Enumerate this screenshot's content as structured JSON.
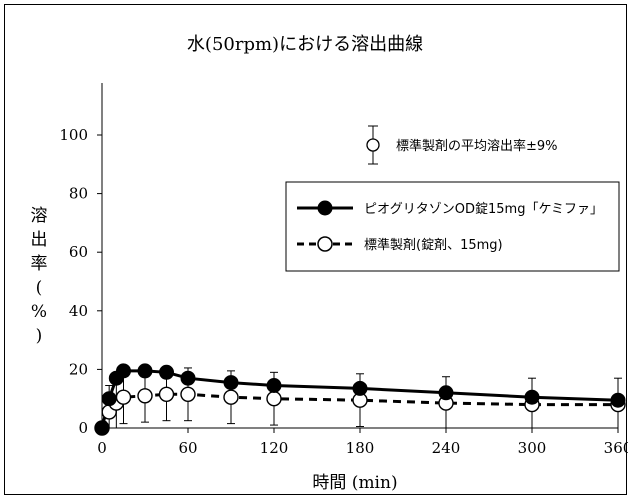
{
  "chart_data": {
    "type": "line",
    "title": "水(50rpm)における溶出曲線",
    "xlabel": "時間 (min)",
    "ylabel": [
      "溶",
      "出",
      "率",
      "(",
      "%",
      ")"
    ],
    "xlim": [
      0,
      360
    ],
    "ylim": [
      0,
      100
    ],
    "xticks": [
      0,
      60,
      120,
      180,
      240,
      300,
      360
    ],
    "yticks": [
      0,
      20,
      40,
      60,
      80,
      100
    ],
    "grid": false,
    "legend_position": "upper-right",
    "errorbar_legend": "標準製剤の平均溶出率±9%",
    "series": [
      {
        "name": "ピオグリタゾンOD錠15mg「ケミファ」",
        "style": "solid",
        "marker": "filled-circle",
        "color": "#000000",
        "x": [
          0,
          5,
          10,
          15,
          30,
          45,
          60,
          90,
          120,
          180,
          240,
          300,
          360
        ],
        "y": [
          0,
          10,
          17,
          19.5,
          19.5,
          19,
          17,
          15.5,
          14.5,
          13.5,
          12,
          10.5,
          9.5
        ]
      },
      {
        "name": "標準製剤(錠剤、15mg)",
        "style": "dashed",
        "marker": "open-circle",
        "color": "#000000",
        "x": [
          0,
          5,
          10,
          15,
          30,
          45,
          60,
          90,
          120,
          180,
          240,
          300,
          360
        ],
        "y": [
          0,
          5.5,
          8.5,
          10.5,
          11,
          11.5,
          11.5,
          10.5,
          10,
          9.5,
          8.5,
          8,
          8
        ],
        "error": 9
      }
    ]
  }
}
